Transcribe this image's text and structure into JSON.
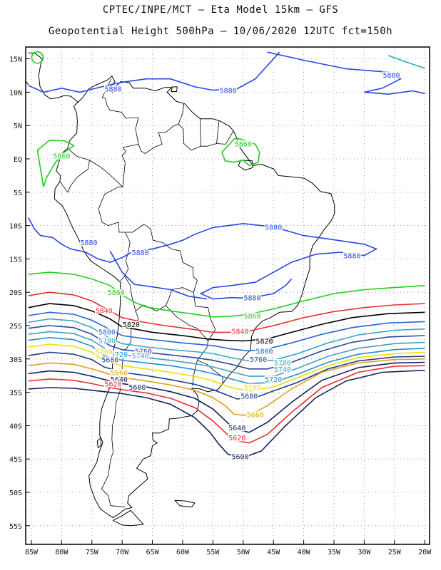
{
  "title_line1": "CPTEC/INPE/MCT –  Eta Model 15km – GFS",
  "title_line2": "Geopotential Height 500hPa – 10/06/2020 12UTC fct=150h",
  "lat_labels": [
    "15N",
    "10N",
    "5N",
    "EQ",
    "5S",
    "10S",
    "15S",
    "20S",
    "25S",
    "30S",
    "35S",
    "40S",
    "45S",
    "50S",
    "55S"
  ],
  "lon_labels": [
    "85W",
    "80W",
    "75W",
    "70W",
    "65W",
    "60W",
    "55W",
    "50W",
    "45W",
    "40W",
    "35W",
    "30W",
    "25W",
    "20W"
  ],
  "contour_colors": {
    "5880": "#2846e8",
    "5860": "#1ecf1e",
    "5840": "#e83030",
    "5820": "#000000",
    "5800": "#2a66d8",
    "5780": "#3aa8c8",
    "5760": "#3046a0",
    "5740": "#44a0c0",
    "5720": "#2090d0",
    "5700": "#f0e000",
    "5680": "#1e4080",
    "5660": "#e0a020",
    "5640": "#102060",
    "5620": "#e83030",
    "5600": "#102060"
  },
  "contour_labels": [
    {
      "text": "5880",
      "color": "5880",
      "lon": -71.5,
      "lat": 10.5
    },
    {
      "text": "5880",
      "color": "5880",
      "lon": -52.5,
      "lat": 10.3
    },
    {
      "text": "5880",
      "color": "5880",
      "lon": -25.5,
      "lat": 12.6
    },
    {
      "text": "5860",
      "color": "5860",
      "lon": -80.0,
      "lat": 0.5
    },
    {
      "text": "5860",
      "color": "5860",
      "lon": -50.0,
      "lat": 2.3
    },
    {
      "text": "5880",
      "color": "5880",
      "lon": -45.0,
      "lat": -10.2
    },
    {
      "text": "5880",
      "color": "5880",
      "lon": -32.0,
      "lat": -14.5
    },
    {
      "text": "5880",
      "color": "5880",
      "lon": -75.5,
      "lat": -12.5
    },
    {
      "text": "5880",
      "color": "5880",
      "lon": -67.0,
      "lat": -14.0
    },
    {
      "text": "5880",
      "color": "5880",
      "lon": -48.5,
      "lat": -20.8
    },
    {
      "text": "5860",
      "color": "5860",
      "lon": -71.0,
      "lat": -20.0
    },
    {
      "text": "5860",
      "color": "5860",
      "lon": -48.5,
      "lat": -23.5
    },
    {
      "text": "5840",
      "color": "5840",
      "lon": -73.0,
      "lat": -22.7
    },
    {
      "text": "5840",
      "color": "5840",
      "lon": -50.5,
      "lat": -25.8
    },
    {
      "text": "5820",
      "color": "5820",
      "lon": -68.5,
      "lat": -24.8
    },
    {
      "text": "5820",
      "color": "5820",
      "lon": -46.5,
      "lat": -27.3
    },
    {
      "text": "5800",
      "color": "5800",
      "lon": -72.5,
      "lat": -25.9
    },
    {
      "text": "5800",
      "color": "5800",
      "lon": -46.5,
      "lat": -28.8
    },
    {
      "text": "5780",
      "color": "5780",
      "lon": -72.5,
      "lat": -27.2
    },
    {
      "text": "5780",
      "color": "5780",
      "lon": -43.5,
      "lat": -30.5
    },
    {
      "text": "5760",
      "color": "5760",
      "lon": -66.5,
      "lat": -28.8
    },
    {
      "text": "5760",
      "color": "5760",
      "lon": -47.5,
      "lat": -30.0
    },
    {
      "text": "5740",
      "color": "5740",
      "lon": -67.0,
      "lat": -29.5
    },
    {
      "text": "5740",
      "color": "5740",
      "lon": -43.5,
      "lat": -31.5
    },
    {
      "text": "5720",
      "color": "5720",
      "lon": -70.5,
      "lat": -29.3
    },
    {
      "text": "5720",
      "color": "5720",
      "lon": -45.0,
      "lat": -33.0
    },
    {
      "text": "5700",
      "color": "5700",
      "lon": -73.0,
      "lat": -28.9
    },
    {
      "text": "5700",
      "color": "5700",
      "lon": -48.5,
      "lat": -34.2
    },
    {
      "text": "5680",
      "color": "5680",
      "lon": -72.0,
      "lat": -30.1
    },
    {
      "text": "5680",
      "color": "5680",
      "lon": -49.0,
      "lat": -35.5
    },
    {
      "text": "5660",
      "color": "5660",
      "lon": -70.5,
      "lat": -32.0
    },
    {
      "text": "5660",
      "color": "5660",
      "lon": -48.0,
      "lat": -38.3
    },
    {
      "text": "5640",
      "color": "5640",
      "lon": -70.5,
      "lat": -33.0
    },
    {
      "text": "5640",
      "color": "5640",
      "lon": -51.0,
      "lat": -40.3
    },
    {
      "text": "5620",
      "color": "5620",
      "lon": -71.5,
      "lat": -33.7
    },
    {
      "text": "5620",
      "color": "5620",
      "lon": -51.0,
      "lat": -41.8
    },
    {
      "text": "5600",
      "color": "5600",
      "lon": -67.5,
      "lat": -34.2
    },
    {
      "text": "5600",
      "color": "5600",
      "lon": -50.5,
      "lat": -44.6
    }
  ]
}
